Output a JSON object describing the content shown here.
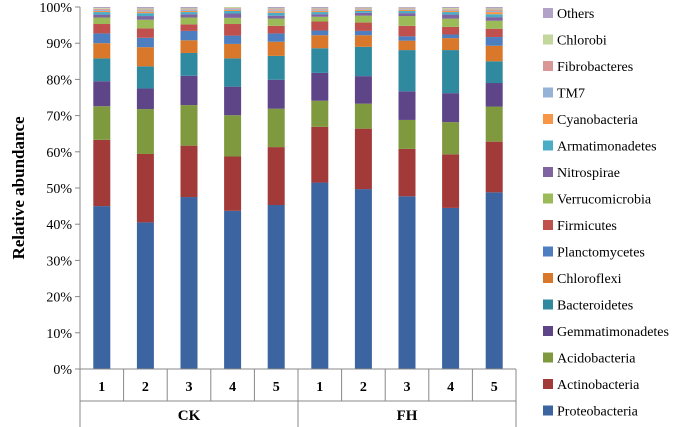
{
  "chart_data": {
    "type": "bar",
    "stacked": true,
    "ylabel": "Relative abundance",
    "ylim": [
      0,
      100
    ],
    "yticks": [
      "0%",
      "10%",
      "20%",
      "30%",
      "40%",
      "50%",
      "60%",
      "70%",
      "80%",
      "90%",
      "100%"
    ],
    "groups": [
      {
        "name": "CK",
        "categories": [
          "1",
          "2",
          "3",
          "4",
          "5"
        ]
      },
      {
        "name": "FH",
        "categories": [
          "1",
          "2",
          "3",
          "4",
          "5"
        ]
      }
    ],
    "legend_position": "right",
    "series": [
      {
        "name": "Proteobacteria",
        "color": "#3c64a0",
        "values": [
          45.0,
          40.5,
          47.5,
          43.7,
          45.3,
          51.5,
          49.7,
          47.7,
          44.5,
          48.8
        ]
      },
      {
        "name": "Actinobacteria",
        "color": "#a33a3a",
        "values": [
          18.3,
          18.9,
          14.2,
          15.0,
          16.0,
          15.4,
          16.7,
          13.1,
          14.8,
          14.0
        ]
      },
      {
        "name": "Acidobacteria",
        "color": "#7f9a3e",
        "values": [
          9.3,
          12.4,
          11.2,
          11.4,
          10.6,
          7.2,
          6.9,
          8.0,
          8.9,
          9.7
        ]
      },
      {
        "name": "Gemmatimonadetes",
        "color": "#5d4587",
        "values": [
          6.9,
          5.7,
          8.1,
          7.9,
          8.0,
          7.7,
          7.6,
          7.9,
          8.0,
          6.5
        ]
      },
      {
        "name": "Bacteroidetes",
        "color": "#2f8aa0",
        "values": [
          6.3,
          6.1,
          6.3,
          7.8,
          6.6,
          6.8,
          8.1,
          11.4,
          11.9,
          6.0
        ]
      },
      {
        "name": "Chloroflexi",
        "color": "#d9782a",
        "values": [
          4.2,
          5.3,
          3.5,
          4.0,
          3.9,
          3.6,
          3.2,
          2.6,
          3.3,
          4.3
        ]
      },
      {
        "name": "Planctomycetes",
        "color": "#4d7fc0",
        "values": [
          2.7,
          2.6,
          2.6,
          2.3,
          2.3,
          1.3,
          1.2,
          1.2,
          1.0,
          2.4
        ]
      },
      {
        "name": "Firmicutes",
        "color": "#c0504d",
        "values": [
          2.6,
          2.6,
          1.8,
          3.2,
          2.1,
          2.5,
          2.3,
          2.9,
          2.1,
          2.3
        ]
      },
      {
        "name": "Verrucomicrobia",
        "color": "#9bbb59",
        "values": [
          1.8,
          2.4,
          1.9,
          1.7,
          2.0,
          1.3,
          1.9,
          2.7,
          2.3,
          2.2
        ]
      },
      {
        "name": "Nitrospirae",
        "color": "#8064a2",
        "values": [
          0.8,
          1.0,
          0.9,
          1.2,
          0.8,
          0.7,
          0.8,
          0.8,
          1.1,
          1.0
        ]
      },
      {
        "name": "Armatimonadetes",
        "color": "#4bacc6",
        "values": [
          0.7,
          0.8,
          0.6,
          0.7,
          0.8,
          0.6,
          0.5,
          0.6,
          0.7,
          0.8
        ]
      },
      {
        "name": "Cyanobacteria",
        "color": "#f79646",
        "values": [
          0.3,
          0.4,
          0.3,
          0.3,
          0.4,
          0.3,
          0.3,
          0.3,
          0.4,
          0.6
        ]
      },
      {
        "name": "TM7",
        "color": "#95b3d7",
        "values": [
          0.3,
          0.3,
          0.3,
          0.3,
          0.3,
          0.2,
          0.2,
          0.2,
          0.2,
          0.3
        ]
      },
      {
        "name": "Fibrobacteres",
        "color": "#d99694",
        "values": [
          0.3,
          0.3,
          0.2,
          0.2,
          0.3,
          0.3,
          0.2,
          0.2,
          0.2,
          0.4
        ]
      },
      {
        "name": "Chlorobi",
        "color": "#c3d69b",
        "values": [
          0.2,
          0.3,
          0.2,
          0.3,
          0.2,
          0.2,
          0.2,
          0.2,
          0.3,
          0.3
        ]
      },
      {
        "name": "Others",
        "color": "#b3a2c7",
        "values": [
          0.3,
          0.4,
          0.4,
          0.0,
          0.4,
          0.4,
          0.2,
          0.2,
          0.3,
          0.4
        ]
      }
    ]
  }
}
